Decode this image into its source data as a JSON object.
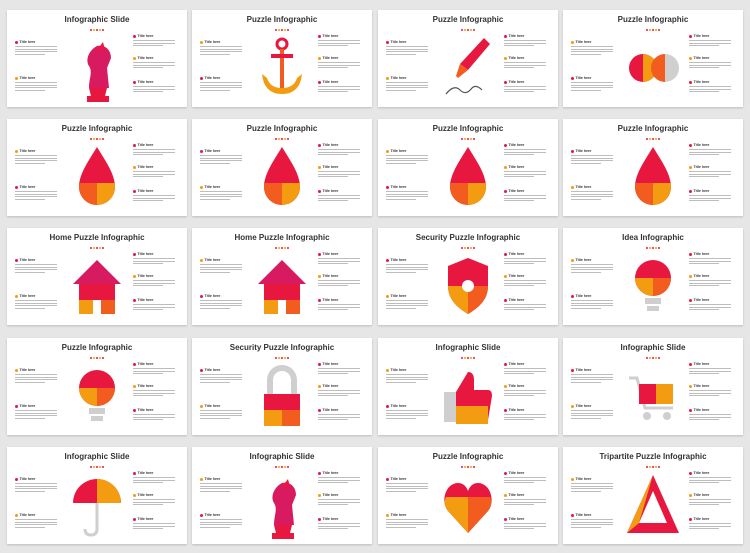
{
  "colors": {
    "red": "#e8173f",
    "magenta": "#d81b60",
    "orange": "#f39c12",
    "deep_orange": "#f25c1f",
    "gray": "#cfcfcf"
  },
  "slides": [
    {
      "title": "Infographic Slide",
      "icon": "chess-knight-icon"
    },
    {
      "title": "Puzzle Infographic",
      "icon": "anchor-icon"
    },
    {
      "title": "Puzzle Infographic",
      "icon": "fountain-pen-icon"
    },
    {
      "title": "Puzzle Infographic",
      "icon": "infinity-icon"
    },
    {
      "title": "Puzzle Infographic",
      "icon": "drop-icon"
    },
    {
      "title": "Puzzle Infographic",
      "icon": "drop-icon"
    },
    {
      "title": "Puzzle Infographic",
      "icon": "drop-icon"
    },
    {
      "title": "Puzzle Infographic",
      "icon": "drop-icon"
    },
    {
      "title": "Home Puzzle Infographic",
      "icon": "house-icon"
    },
    {
      "title": "Home Puzzle Infographic",
      "icon": "house-icon"
    },
    {
      "title": "Security Puzzle Infographic",
      "icon": "shield-icon"
    },
    {
      "title": "Idea Infographic",
      "icon": "lightbulb-icon"
    },
    {
      "title": "Puzzle Infographic",
      "icon": "lightbulb-icon"
    },
    {
      "title": "Security Puzzle Infographic",
      "icon": "padlock-icon"
    },
    {
      "title": "Infographic Slide",
      "icon": "thumbs-up-icon"
    },
    {
      "title": "Infographic Slide",
      "icon": "shopping-cart-icon"
    },
    {
      "title": "Infographic Slide",
      "icon": "umbrella-icon"
    },
    {
      "title": "Infographic Slide",
      "icon": "chess-knight-icon"
    },
    {
      "title": "Puzzle Infographic",
      "icon": "heart-icon"
    },
    {
      "title": "Tripartite Puzzle Infographic",
      "icon": "triangle-icon"
    }
  ],
  "text_block": {
    "label": "Title here"
  }
}
